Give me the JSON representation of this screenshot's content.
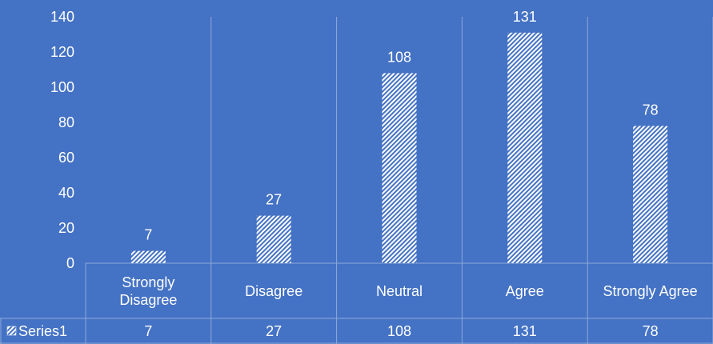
{
  "chart_data": {
    "type": "bar",
    "title": "",
    "xlabel": "",
    "ylabel": "",
    "categories": [
      "Strongly Disagree",
      "Disagree",
      "Neutral",
      "Agree",
      "Strongly Agree"
    ],
    "category_lines": [
      [
        "Strongly",
        "Disagree"
      ],
      [
        "Disagree"
      ],
      [
        "Neutral"
      ],
      [
        "Agree"
      ],
      [
        "Strongly Agree"
      ]
    ],
    "series": [
      {
        "name": "Series1",
        "values": [
          7,
          27,
          108,
          131,
          78
        ]
      }
    ],
    "ylim": [
      0,
      140
    ],
    "yticks": [
      0,
      20,
      40,
      60,
      80,
      100,
      120,
      140
    ],
    "data_labels": true,
    "data_table": true,
    "grid": "vertical-category-separators",
    "bar_pattern": "diagonal-hatch-white",
    "colors": {
      "background": "#4472C4",
      "bar": "#ffffff",
      "text": "#ffffff",
      "grid": "#8EA9DB"
    }
  }
}
